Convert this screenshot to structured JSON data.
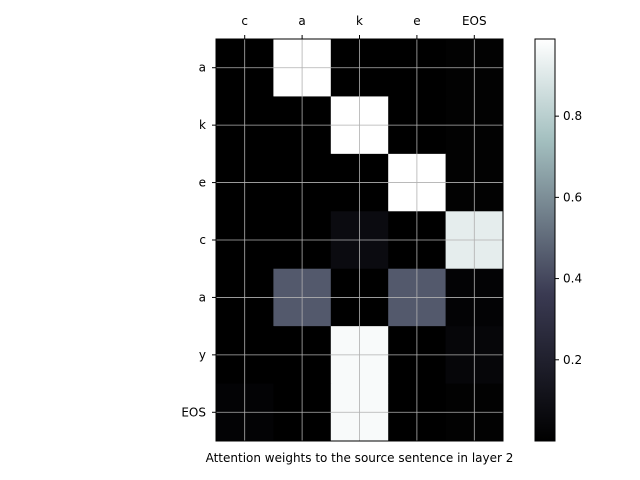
{
  "chart_data": {
    "type": "heatmap",
    "title": "",
    "xlabel": "Attention weights to the source sentence in layer 2",
    "ylabel": "",
    "x_categories": [
      "c",
      "a",
      "k",
      "e",
      "EOS"
    ],
    "y_categories": [
      "a",
      "k",
      "e",
      "c",
      "a",
      "y",
      "EOS"
    ],
    "x_axis_position": "top",
    "grid": true,
    "colormap": "bone",
    "values": [
      [
        0.0,
        0.99,
        0.0,
        0.0,
        0.01
      ],
      [
        0.0,
        0.0,
        0.99,
        0.0,
        0.01
      ],
      [
        0.0,
        0.0,
        0.0,
        0.99,
        0.01
      ],
      [
        0.0,
        0.0,
        0.07,
        0.0,
        0.92
      ],
      [
        0.0,
        0.45,
        0.0,
        0.45,
        0.02
      ],
      [
        0.0,
        0.0,
        0.97,
        0.0,
        0.04
      ],
      [
        0.02,
        0.0,
        0.97,
        0.0,
        0.01
      ]
    ],
    "colorbar": {
      "range": [
        0.0,
        0.99
      ],
      "ticks": [
        0.2,
        0.4,
        0.6,
        0.8
      ],
      "tick_labels": [
        "0.2",
        "0.4",
        "0.6",
        "0.8"
      ]
    }
  }
}
